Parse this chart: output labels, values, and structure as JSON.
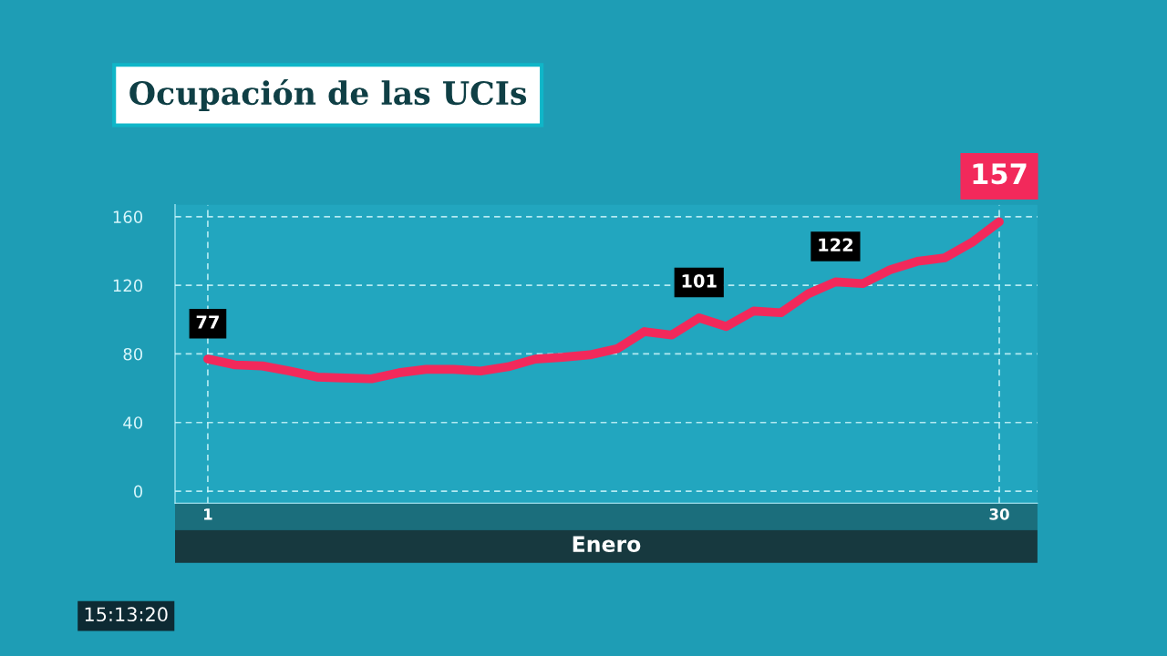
{
  "chart_data": {
    "type": "line",
    "title": "Ocupación de las UCIs",
    "xlabel": "Enero",
    "x": [
      1,
      2,
      3,
      4,
      5,
      6,
      7,
      8,
      9,
      10,
      11,
      12,
      13,
      14,
      15,
      16,
      17,
      18,
      19,
      20,
      21,
      22,
      23,
      24,
      25,
      26,
      27,
      28,
      29,
      30
    ],
    "series": [
      {
        "color": "#f2295b",
        "values": [
          77,
          73.6,
          73,
          70,
          66.5,
          66,
          65.5,
          69,
          71,
          71,
          70,
          72.5,
          77,
          78,
          79.5,
          83,
          93,
          91,
          101,
          96,
          105,
          104,
          115,
          122,
          121,
          129,
          134,
          136,
          145,
          157
        ],
        "value_labels": [
          "77",
          null,
          null,
          null,
          null,
          null,
          null,
          null,
          null,
          null,
          null,
          null,
          null,
          null,
          null,
          null,
          null,
          null,
          "101",
          null,
          null,
          null,
          null,
          "122",
          null,
          null,
          null,
          null,
          null,
          "157"
        ]
      }
    ],
    "xlim": [
      -0.2,
      31.4
    ],
    "xticks": [
      1,
      30
    ],
    "ylim": [
      -7,
      167
    ],
    "yticks": [
      0,
      40,
      80,
      120,
      160
    ],
    "grid": true,
    "legend": false,
    "marker": "none",
    "line_style": "solid",
    "annotations": [
      "15:13:20"
    ]
  }
}
